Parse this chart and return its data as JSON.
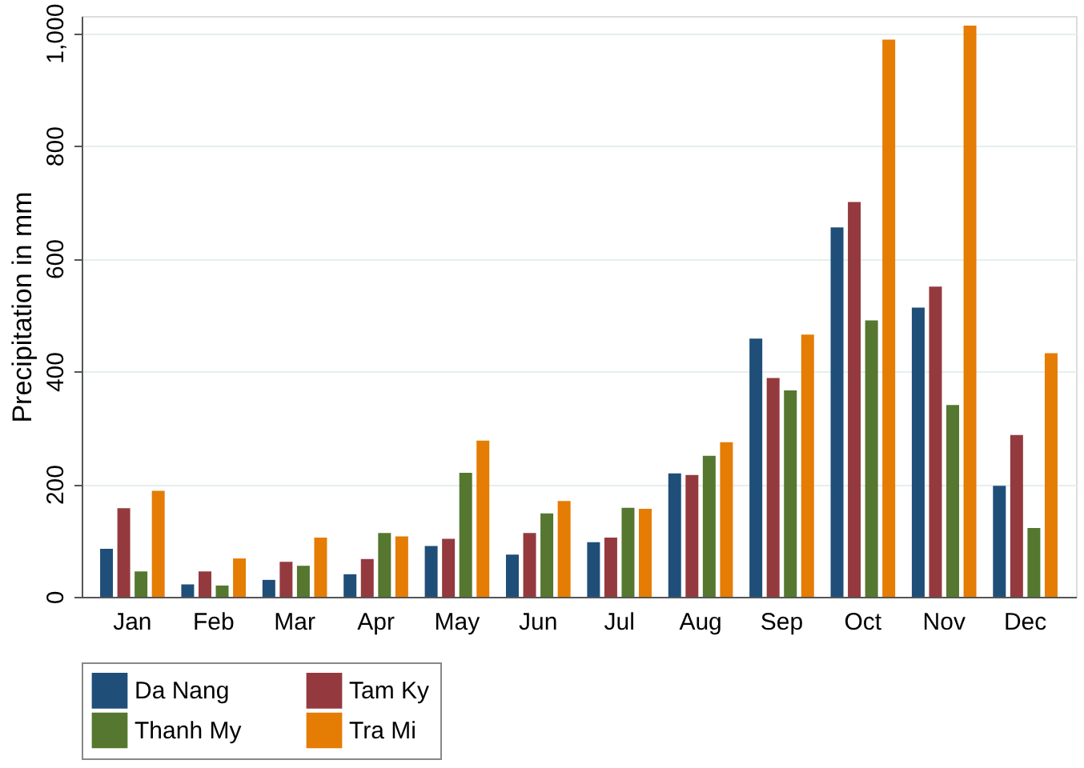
{
  "chart_data": {
    "type": "bar",
    "ylabel": "Precipitation in mm",
    "categories": [
      "Jan",
      "Feb",
      "Mar",
      "Apr",
      "May",
      "Jun",
      "Jul",
      "Aug",
      "Sep",
      "Oct",
      "Nov",
      "Dec"
    ],
    "series": [
      {
        "name": "Da Nang",
        "color": "#1f4e79",
        "values": [
          85,
          22,
          30,
          40,
          90,
          75,
          97,
          219,
          458,
          655,
          513,
          197
        ]
      },
      {
        "name": "Tam Ky",
        "color": "#943a3f",
        "values": [
          157,
          45,
          62,
          67,
          103,
          113,
          105,
          216,
          388,
          700,
          550,
          287
        ]
      },
      {
        "name": "Thanh My",
        "color": "#55772f",
        "values": [
          45,
          20,
          55,
          113,
          220,
          148,
          158,
          250,
          366,
          490,
          340,
          122
        ]
      },
      {
        "name": "Tra Mi",
        "color": "#e57c04",
        "values": [
          188,
          68,
          105,
          107,
          277,
          170,
          156,
          274,
          465,
          988,
          1013,
          432
        ]
      }
    ],
    "ylim": [
      0,
      1030
    ],
    "yticks": [
      0,
      200,
      400,
      600,
      800,
      {
        "value": 1000,
        "label": "1,000"
      }
    ],
    "grid": "y",
    "legend": "bottom"
  }
}
